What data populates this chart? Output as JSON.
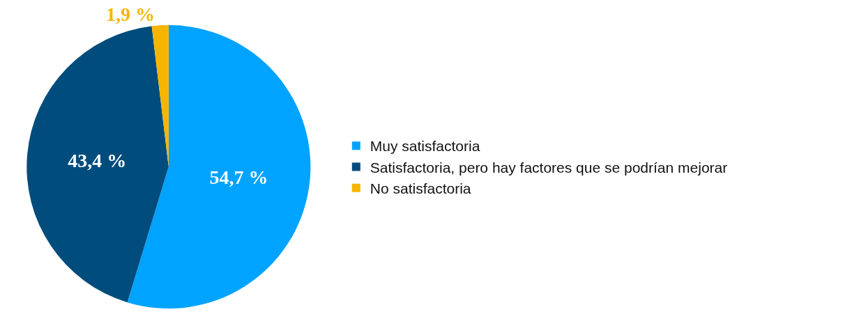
{
  "chart_data": {
    "type": "pie",
    "categories": [
      "Muy satisfactoria",
      "Satisfactoria, pero hay factores que se podrían mejorar",
      "No satisfactoria"
    ],
    "values": [
      54.7,
      43.4,
      1.9
    ],
    "colors": [
      "#00a3ff",
      "#004c7d",
      "#f7b500"
    ],
    "value_labels": [
      "54,7 %",
      "43,4 %",
      "1,9 %"
    ],
    "legend": "right"
  }
}
